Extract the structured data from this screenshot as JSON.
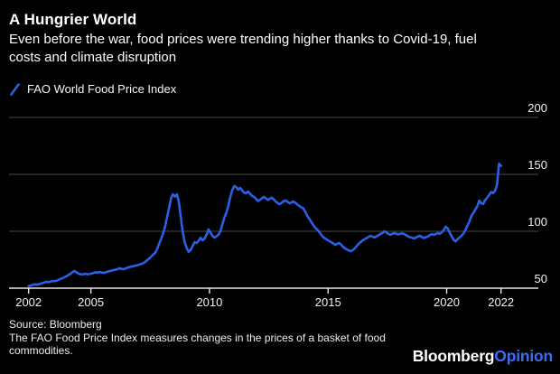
{
  "header": {
    "title": "A Hungrier World",
    "subtitle_lines": [
      "Even before the war, food prices were trending higher thanks to Covid-19, fuel",
      "costs and climate disruption"
    ]
  },
  "legend": {
    "label": "FAO World Food Price Index",
    "marker_color": "#2b5fe6"
  },
  "chart_data": {
    "type": "line",
    "title": "A Hungrier World",
    "series_name": "FAO World Food Price Index",
    "line_color": "#2b5fe6",
    "grid_color": "#4d4d4d",
    "axis_color": "#e6e6e6",
    "legend_position": "top-left",
    "grid": true,
    "xlabel": "",
    "ylabel": "",
    "x_start": 2002.375,
    "points_per_year": 12,
    "xlim": [
      2002.375,
      2022.292
    ],
    "ylim": [
      50,
      210
    ],
    "x_ticks": [
      2002,
      2005,
      2010,
      2015,
      2020,
      2022
    ],
    "y_ticks": [
      200,
      150,
      100,
      50
    ],
    "values": [
      51.8,
      52.3,
      52.8,
      53.4,
      53.0,
      53.4,
      53.8,
      54.5,
      55.0,
      55.6,
      55.2,
      55.8,
      56.3,
      56.0,
      56.5,
      57.2,
      58.0,
      58.7,
      59.5,
      60.3,
      61.5,
      62.5,
      63.8,
      65.1,
      64.2,
      63.0,
      62.4,
      62.0,
      62.4,
      62.7,
      62.2,
      62.5,
      62.9,
      63.5,
      64.0,
      63.6,
      64.3,
      63.8,
      63.5,
      63.9,
      64.5,
      65.0,
      65.5,
      65.9,
      66.3,
      66.7,
      67.5,
      67.0,
      66.7,
      67.2,
      68.0,
      68.6,
      69.0,
      69.4,
      69.8,
      70.2,
      70.6,
      71.2,
      72.0,
      73.0,
      74.6,
      76.0,
      77.8,
      79.5,
      81.0,
      84.1,
      88.9,
      93.0,
      98.0,
      104.0,
      112.0,
      120.0,
      129.0,
      132.5,
      130.5,
      132.5,
      126.0,
      112.0,
      99.0,
      90.0,
      85.0,
      82.0,
      83.5,
      87.0,
      90.5,
      89.7,
      91.5,
      94.4,
      92.0,
      93.5,
      97.0,
      101.6,
      99.0,
      96.0,
      94.4,
      95.5,
      97.0,
      100.0,
      105.6,
      112.0,
      116.0,
      122.0,
      130.0,
      136.0,
      139.7,
      139.0,
      136.5,
      138.0,
      136.0,
      134.0,
      133.3,
      134.9,
      133.0,
      131.0,
      130.2,
      128.6,
      126.7,
      127.5,
      128.8,
      130.2,
      129.0,
      127.5,
      128.6,
      129.5,
      128.0,
      126.2,
      124.8,
      123.8,
      125.0,
      126.5,
      127.0,
      125.8,
      124.6,
      125.2,
      126.2,
      125.0,
      123.5,
      122.2,
      121.0,
      120.0,
      117.0,
      113.5,
      111.0,
      108.0,
      105.5,
      103.0,
      101.6,
      99.5,
      97.0,
      95.0,
      93.7,
      92.5,
      91.5,
      90.5,
      89.5,
      88.0,
      88.8,
      89.7,
      88.5,
      86.5,
      85.0,
      84.0,
      83.2,
      82.4,
      83.5,
      85.0,
      87.0,
      89.0,
      90.5,
      92.0,
      93.0,
      94.0,
      95.0,
      96.0,
      95.2,
      94.5,
      95.5,
      96.5,
      97.6,
      98.5,
      100.0,
      99.0,
      97.6,
      97.0,
      97.8,
      98.4,
      97.8,
      97.2,
      97.8,
      98.2,
      97.5,
      96.5,
      95.5,
      94.8,
      94.4,
      93.7,
      94.5,
      95.5,
      96.0,
      94.8,
      94.0,
      94.8,
      95.5,
      96.5,
      97.6,
      96.8,
      97.5,
      98.5,
      97.8,
      99.0,
      101.0,
      104.0,
      102.5,
      99.0,
      95.5,
      92.5,
      91.0,
      93.0,
      94.5,
      96.0,
      98.0,
      101.0,
      105.0,
      108.5,
      113.5,
      116.0,
      119.0,
      122.0,
      127.0,
      124.5,
      124.0,
      127.5,
      129.5,
      132.0,
      134.5,
      133.5,
      135.5,
      141.0,
      159.3,
      157.5
    ]
  },
  "footer": {
    "source": "Source: Bloomberg",
    "note_lines": [
      "The FAO Food Price Index measures changes in the prices of a basket of food",
      "commodities."
    ],
    "logo_primary": "Bloomberg",
    "logo_accent": "Opinion",
    "logo_accent_color": "#3d6cf4"
  }
}
